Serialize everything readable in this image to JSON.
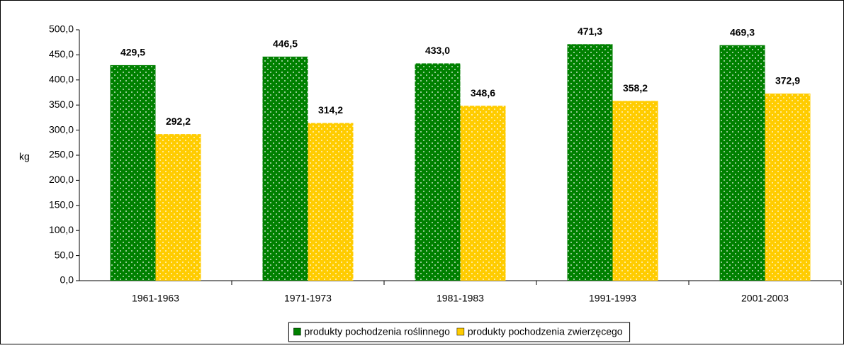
{
  "chart_data": {
    "type": "bar",
    "y_label": "kg",
    "categories": [
      "1961-1963",
      "1971-1973",
      "1981-1983",
      "1991-1993",
      "2001-2003"
    ],
    "series": [
      {
        "name": "produkty pochodzenia roślinnego",
        "color": "#008000",
        "values": [
          429.5,
          446.5,
          433.0,
          471.3,
          469.3
        ],
        "value_labels": [
          "429,5",
          "446,5",
          "433,0",
          "471,3",
          "469,3"
        ]
      },
      {
        "name": "produkty pochodzenia zwierzęcego",
        "color": "#ffcc00",
        "values": [
          292.2,
          314.2,
          348.6,
          358.2,
          372.9
        ],
        "value_labels": [
          "292,2",
          "314,2",
          "348,6",
          "358,2",
          "372,9"
        ]
      }
    ],
    "ylim": [
      0,
      500
    ],
    "yticks": [
      {
        "value": 0,
        "label": "0,0"
      },
      {
        "value": 50,
        "label": "50,0"
      },
      {
        "value": 100,
        "label": "100,0"
      },
      {
        "value": 150,
        "label": "150,0"
      },
      {
        "value": 200,
        "label": "200,0"
      },
      {
        "value": 250,
        "label": "250,0"
      },
      {
        "value": 300,
        "label": "300,0"
      },
      {
        "value": 350,
        "label": "350,0"
      },
      {
        "value": 400,
        "label": "400,0"
      },
      {
        "value": 450,
        "label": "450,0"
      },
      {
        "value": 500,
        "label": "500,0"
      }
    ],
    "grid": false,
    "legend": "bottom"
  }
}
